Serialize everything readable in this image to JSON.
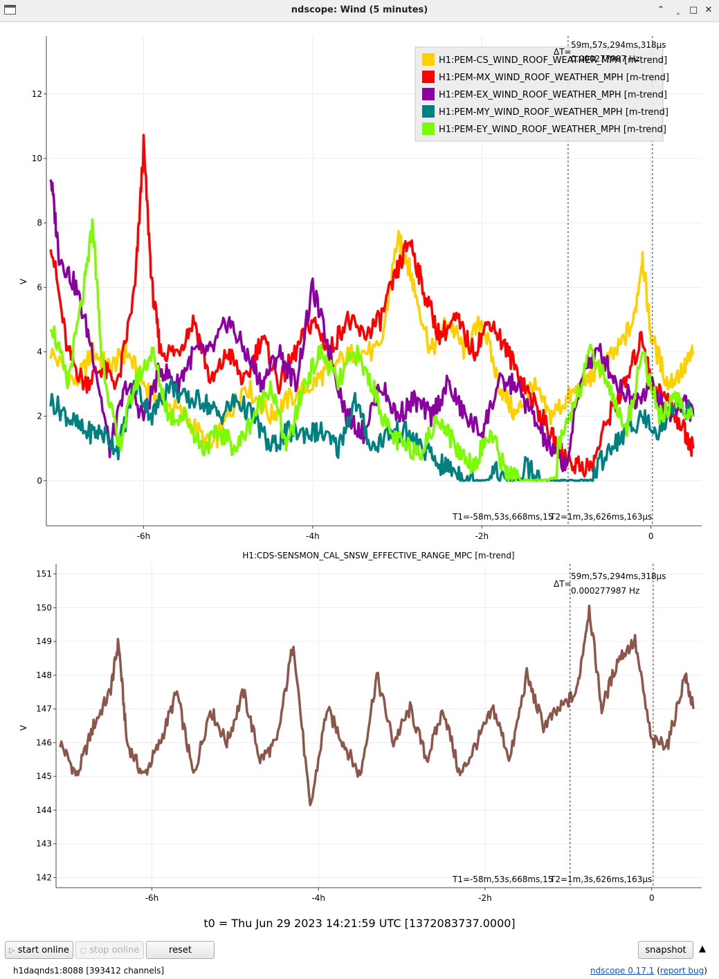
{
  "window": {
    "title": "ndscope: Wind (5 minutes)",
    "controls": [
      "⌃",
      "‸",
      "□",
      "✕"
    ]
  },
  "top_plot": {
    "ylabel": "V",
    "cursor_dt": "ΔT=",
    "cursor_dt_value": "59m,57s,294ms,318µs",
    "cursor_freq": "0.000277987 Hz",
    "cursor_t1": "T1=-58m,53s,668ms,15",
    "cursor_t2": "T2=1m,3s,626ms,163µs",
    "legend": [
      {
        "label": "H1:PEM-CS_WIND_ROOF_WEATHER_MPH [m-trend]",
        "color": "#ffd000"
      },
      {
        "label": "H1:PEM-MX_WIND_ROOF_WEATHER_MPH [m-trend]",
        "color": "#ff0000"
      },
      {
        "label": "H1:PEM-EX_WIND_ROOF_WEATHER_MPH [m-trend]",
        "color": "#8b00a0"
      },
      {
        "label": "H1:PEM-MY_WIND_ROOF_WEATHER_MPH [m-trend]",
        "color": "#008080"
      },
      {
        "label": "H1:PEM-EY_WIND_ROOF_WEATHER_MPH [m-trend]",
        "color": "#7cfc00"
      }
    ]
  },
  "bottom_plot": {
    "title": "H1:CDS-SENSMON_CAL_SNSW_EFFECTIVE_RANGE_MPC [m-trend]",
    "ylabel": "V",
    "cursor_dt": "ΔT=",
    "cursor_dt_value": "59m,57s,294ms,318µs",
    "cursor_freq": "0.000277987 Hz",
    "cursor_t1": "T1=-58m,53s,668ms,15",
    "cursor_t2": "T2=1m,3s,626ms,163µs",
    "color": "#8c564b"
  },
  "chart_data": [
    {
      "type": "line",
      "ylabel": "V",
      "xlabel": "",
      "x_ticks": [
        "-6h",
        "-4h",
        "-2h",
        "0"
      ],
      "y_ticks": [
        "0",
        "2",
        "4",
        "6",
        "8",
        "10",
        "12"
      ],
      "xlim_hours": [
        -7.15,
        0.6
      ],
      "ylim": [
        -1.4,
        13.8
      ],
      "grid": true,
      "legend_position": "top-right",
      "cursors_hours": [
        -0.98,
        0.018
      ],
      "series": [
        {
          "name": "H1:PEM-CS_WIND_ROOF_WEATHER_MPH [m-trend]",
          "color": "#ffd000",
          "x": [
            -7.1,
            -6.8,
            -6.6,
            -6.4,
            -6.2,
            -6.0,
            -5.8,
            -5.5,
            -5.2,
            -5.0,
            -4.8,
            -4.5,
            -4.3,
            -4.0,
            -3.8,
            -3.5,
            -3.2,
            -3.0,
            -2.9,
            -2.8,
            -2.6,
            -2.4,
            -2.2,
            -2.0,
            -1.8,
            -1.6,
            -1.4,
            -1.2,
            -1.0,
            -0.8,
            -0.6,
            -0.4,
            -0.2,
            -0.1,
            0.0,
            0.2,
            0.4,
            0.5
          ],
          "values": [
            4,
            3,
            4,
            3.5,
            4,
            3,
            2.5,
            2,
            1,
            2,
            3,
            2,
            2.5,
            3,
            3.5,
            4,
            4,
            7.5,
            7,
            6,
            4,
            5,
            4,
            5,
            3,
            2,
            3,
            2,
            2.5,
            3,
            3.5,
            4,
            5,
            7,
            4.5,
            3,
            3.5,
            4
          ]
        },
        {
          "name": "H1:PEM-MX_WIND_ROOF_WEATHER_MPH [m-trend]",
          "color": "#ff0000",
          "x": [
            -7.1,
            -6.9,
            -6.7,
            -6.5,
            -6.3,
            -6.1,
            -6.0,
            -5.9,
            -5.8,
            -5.6,
            -5.4,
            -5.2,
            -5.0,
            -4.8,
            -4.6,
            -4.4,
            -4.2,
            -4.0,
            -3.8,
            -3.6,
            -3.4,
            -3.2,
            -3.0,
            -2.85,
            -2.7,
            -2.5,
            -2.3,
            -2.1,
            -1.9,
            -1.7,
            -1.5,
            -1.3,
            -1.1,
            -0.9,
            -0.7,
            -0.5,
            -0.3,
            -0.1,
            0.0,
            0.2,
            0.4,
            0.5
          ],
          "values": [
            7.5,
            4,
            3,
            3.5,
            3,
            6,
            10.4,
            6,
            4,
            4,
            5,
            3,
            4,
            3,
            4.5,
            3,
            4,
            5,
            4,
            5,
            4.5,
            5,
            6.5,
            7.5,
            6,
            4.5,
            5,
            4,
            5,
            4,
            3,
            2,
            1,
            0.5,
            0.4,
            2,
            3,
            4.5,
            3,
            2.5,
            1.5,
            1
          ]
        },
        {
          "name": "H1:PEM-EX_WIND_ROOF_WEATHER_MPH [m-trend]",
          "color": "#8b00a0",
          "x": [
            -7.1,
            -7.0,
            -6.8,
            -6.6,
            -6.4,
            -6.2,
            -6.0,
            -5.8,
            -5.6,
            -5.4,
            -5.2,
            -5.0,
            -4.8,
            -4.6,
            -4.4,
            -4.2,
            -4.0,
            -3.8,
            -3.6,
            -3.4,
            -3.2,
            -3.0,
            -2.8,
            -2.6,
            -2.4,
            -2.2,
            -2.0,
            -1.8,
            -1.6,
            -1.4,
            -1.2,
            -1.0,
            -0.8,
            -0.6,
            -0.4,
            -0.2,
            0.0,
            0.2,
            0.4,
            0.5
          ],
          "values": [
            9.5,
            7,
            6,
            4,
            1,
            3,
            2,
            3.5,
            3,
            4,
            4,
            5,
            4,
            3,
            4,
            3,
            6,
            4,
            2,
            1.5,
            3,
            2,
            2.5,
            2,
            3,
            2,
            1.5,
            3,
            3,
            2,
            1,
            0.5,
            3.5,
            4,
            3,
            2.5,
            3,
            2,
            2.5,
            2
          ]
        },
        {
          "name": "H1:PEM-MY_WIND_ROOF_WEATHER_MPH [m-trend]",
          "color": "#008080",
          "x": [
            -7.1,
            -6.9,
            -6.7,
            -6.5,
            -6.3,
            -6.1,
            -5.9,
            -5.7,
            -5.5,
            -5.3,
            -5.1,
            -4.9,
            -4.7,
            -4.5,
            -4.3,
            -4.1,
            -3.9,
            -3.7,
            -3.5,
            -3.3,
            -3.1,
            -2.9,
            -2.7,
            -2.5,
            -2.3,
            -2.1,
            -1.9,
            -1.7,
            -1.5,
            -1.3,
            -1.1,
            -0.9,
            -0.7,
            -0.5,
            -0.3,
            -0.1,
            0.1,
            0.3,
            0.5
          ],
          "values": [
            2.5,
            2,
            1.5,
            1.5,
            1,
            3,
            2,
            3,
            2.5,
            2.5,
            2,
            2.5,
            2,
            1,
            1.5,
            1.5,
            1.5,
            1,
            2.5,
            1,
            1.5,
            1.5,
            1,
            0.5,
            0.3,
            0,
            0.4,
            0,
            0.5,
            0,
            0,
            0,
            0.1,
            1,
            1.5,
            2,
            1.5,
            2.5,
            2
          ]
        },
        {
          "name": "H1:PEM-EY_WIND_ROOF_WEATHER_MPH [m-trend]",
          "color": "#7cfc00",
          "x": [
            -7.1,
            -6.9,
            -6.7,
            -6.6,
            -6.5,
            -6.3,
            -6.1,
            -5.9,
            -5.7,
            -5.5,
            -5.3,
            -5.1,
            -4.9,
            -4.7,
            -4.5,
            -4.3,
            -4.1,
            -3.9,
            -3.7,
            -3.5,
            -3.3,
            -3.1,
            -2.9,
            -2.7,
            -2.5,
            -2.3,
            -2.1,
            -1.9,
            -1.7,
            -1.5,
            -1.3,
            -1.1,
            -0.9,
            -0.7,
            -0.5,
            -0.3,
            -0.1,
            0.1,
            0.3,
            0.5
          ],
          "values": [
            5,
            3,
            6,
            8,
            4,
            1,
            3,
            4,
            2,
            2,
            1,
            1.5,
            1,
            2,
            3,
            1,
            3,
            4,
            3,
            4,
            3,
            1.5,
            1,
            1,
            2,
            1,
            0.5,
            1.5,
            0.2,
            0,
            0,
            1,
            2.5,
            4,
            3,
            1.5,
            4,
            2,
            2.5,
            2
          ]
        }
      ]
    },
    {
      "type": "line",
      "title": "H1:CDS-SENSMON_CAL_SNSW_EFFECTIVE_RANGE_MPC [m-trend]",
      "ylabel": "V",
      "xlabel": "",
      "x_ticks": [
        "-6h",
        "-4h",
        "-2h",
        "0"
      ],
      "y_ticks": [
        "142",
        "143",
        "144",
        "145",
        "146",
        "147",
        "148",
        "149",
        "150",
        "151"
      ],
      "xlim_hours": [
        -7.15,
        0.6
      ],
      "ylim": [
        141.7,
        151.3
      ],
      "grid": true,
      "cursors_hours": [
        -0.98,
        0.018
      ],
      "series": [
        {
          "name": "H1:CDS-SENSMON_CAL_SNSW_EFFECTIVE_RANGE_MPC [m-trend]",
          "color": "#8c564b",
          "x": [
            -7.1,
            -6.9,
            -6.7,
            -6.5,
            -6.4,
            -6.3,
            -6.1,
            -5.9,
            -5.7,
            -5.5,
            -5.3,
            -5.1,
            -4.9,
            -4.7,
            -4.5,
            -4.3,
            -4.1,
            -3.9,
            -3.7,
            -3.5,
            -3.3,
            -3.1,
            -2.9,
            -2.7,
            -2.5,
            -2.3,
            -2.1,
            -1.9,
            -1.7,
            -1.5,
            -1.3,
            -1.1,
            -0.9,
            -0.75,
            -0.6,
            -0.4,
            -0.2,
            0.0,
            0.2,
            0.4,
            0.5
          ],
          "values": [
            146,
            145,
            146.5,
            147.5,
            149,
            146,
            145,
            146,
            147.5,
            145,
            147,
            146,
            147.5,
            145.5,
            146,
            149,
            144,
            147,
            146,
            145,
            148,
            146,
            147,
            145.5,
            147,
            145,
            146,
            147,
            145.5,
            148,
            146.5,
            147,
            147.5,
            150,
            147,
            148.5,
            149,
            146,
            146,
            148,
            147
          ]
        }
      ]
    }
  ],
  "footer": {
    "t0": "t0 = Thu Jun 29 2023 14:21:59 UTC [1372083737.0000]",
    "buttons": {
      "start_online": "start online",
      "stop_online": "stop online",
      "reset": "reset",
      "snapshot": "snapshot"
    },
    "status_left": "h1daqnds1:8088  [393412 channels]",
    "version_link": "ndscope 0.17.1",
    "bug_link": "report bug"
  }
}
